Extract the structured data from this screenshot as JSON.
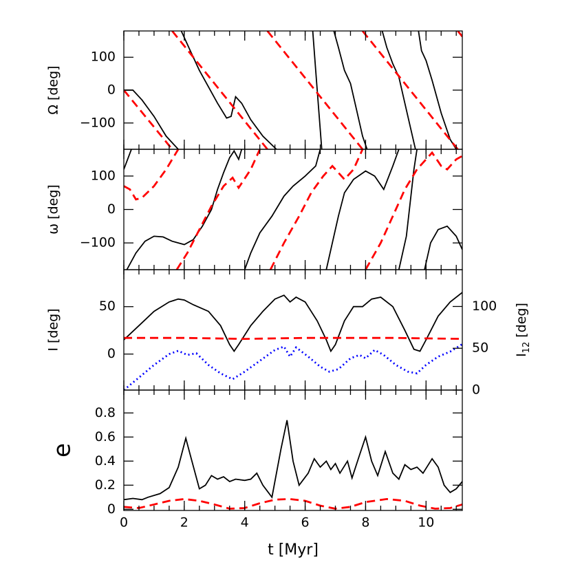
{
  "chart_data": [
    {
      "type": "line",
      "ylabel": "Ω [deg]",
      "xlim": [
        0,
        11.2
      ],
      "xticks": [
        0,
        2,
        4,
        6,
        8,
        10
      ],
      "ylim": [
        -180,
        180
      ],
      "yticks": [
        {
          "value": -100,
          "label": "−100"
        },
        0,
        100
      ],
      "series": [
        {
          "color": "#000000",
          "linestyle": "solid",
          "x": [
            0,
            0.3,
            0.6,
            1.0,
            1.4,
            1.8,
            1.85,
            1.9,
            2.2,
            2.5,
            2.8,
            3.1,
            3.4,
            3.55,
            3.7,
            3.9,
            4.2,
            4.6,
            5.05,
            5.6,
            6.25,
            6.35,
            6.45,
            6.55,
            6.75,
            6.95,
            7.1,
            7.3,
            7.5,
            7.7,
            7.9,
            8.05,
            8.3,
            8.55,
            8.7,
            8.9,
            9.1,
            9.3,
            9.5,
            9.65,
            9.7,
            9.75,
            9.85,
            10.0,
            10.2,
            10.5,
            10.8,
            11.0
          ],
          "values": [
            0,
            0,
            -30,
            -80,
            -140,
            -180,
            null,
            180,
            120,
            60,
            10,
            -40,
            -85,
            -80,
            -20,
            -40,
            -90,
            -140,
            -180,
            null,
            180,
            60,
            -60,
            -180,
            null,
            180,
            130,
            60,
            20,
            -60,
            -140,
            -180,
            null,
            180,
            130,
            80,
            40,
            -40,
            -120,
            -180,
            null,
            180,
            120,
            90,
            30,
            -70,
            -150,
            -180
          ]
        },
        {
          "color": "#ff0000",
          "linestyle": "dashed",
          "x": [
            0,
            1.6,
            1.6,
            1.6,
            4.75,
            4.75,
            4.75,
            7.9,
            7.9,
            7.9,
            11.05,
            11.05,
            11.05,
            11.2
          ],
          "values": [
            0,
            -180,
            null,
            180,
            -180,
            null,
            180,
            -180,
            null,
            180,
            -180,
            null,
            180,
            163
          ]
        }
      ]
    },
    {
      "type": "line",
      "ylabel": "ω [deg]",
      "xlim": [
        0,
        11.2
      ],
      "xticks": [
        0,
        2,
        4,
        6,
        8,
        10
      ],
      "ylim": [
        -180,
        180
      ],
      "yticks": [
        {
          "value": -100,
          "label": "−100"
        },
        0,
        100
      ],
      "series": [
        {
          "color": "#000000",
          "linestyle": "solid",
          "x": [
            0,
            0.25,
            0.17,
            0.1,
            0.4,
            0.7,
            1.0,
            1.3,
            1.6,
            2.0,
            2.3,
            2.6,
            2.9,
            3.1,
            3.3,
            3.5,
            3.65,
            3.8,
            3.9,
            3.95,
            4.0,
            4.2,
            4.5,
            4.9,
            5.3,
            5.6,
            6.0,
            6.35,
            6.5,
            6.6,
            6.7,
            6.9,
            7.1,
            7.3,
            7.6,
            8.0,
            8.3,
            8.6,
            8.9,
            9.1,
            9.1,
            9.1,
            9.35,
            9.6,
            9.7,
            9.8,
            9.95,
            10.15,
            10.4,
            10.7,
            11.0,
            11.2
          ],
          "values": [
            120,
            180,
            null,
            -180,
            -130,
            -95,
            -80,
            -82,
            -95,
            -105,
            -90,
            -50,
            0,
            60,
            110,
            155,
            175,
            150,
            180,
            null,
            -180,
            -130,
            -70,
            -20,
            40,
            70,
            100,
            130,
            180,
            null,
            -180,
            -100,
            -20,
            50,
            90,
            115,
            100,
            60,
            130,
            180,
            null,
            -180,
            -80,
            120,
            180,
            null,
            -180,
            -100,
            -60,
            -50,
            -80,
            -120
          ]
        },
        {
          "color": "#ff0000",
          "linestyle": "dashed",
          "x": [
            0,
            0.2,
            0.4,
            0.6,
            1.0,
            1.4,
            1.7,
            1.8,
            1.8,
            1.75,
            2.1,
            2.5,
            2.9,
            3.3,
            3.6,
            3.7,
            3.8,
            4.2,
            4.5,
            4.6,
            4.85,
            5.3,
            5.8,
            6.2,
            6.6,
            6.9,
            7.1,
            7.3,
            7.6,
            7.9,
            7.95,
            8.0,
            8.5,
            8.9,
            9.3,
            9.7,
            10.0,
            10.2,
            10.5,
            10.7,
            11.0,
            11.2
          ],
          "values": [
            70,
            60,
            30,
            35,
            70,
            120,
            165,
            180,
            null,
            -180,
            -130,
            -60,
            10,
            70,
            95,
            80,
            65,
            120,
            180,
            null,
            -180,
            -100,
            -20,
            50,
            100,
            130,
            110,
            90,
            120,
            180,
            null,
            -180,
            -100,
            -20,
            60,
            120,
            150,
            170,
            130,
            120,
            150,
            160
          ]
        }
      ]
    },
    {
      "type": "line",
      "ylabel": "I [deg]",
      "y2label": [
        "I",
        "12",
        " [deg]"
      ],
      "xlim": [
        0,
        11.2
      ],
      "xticks": [
        0,
        2,
        4,
        6,
        8,
        10
      ],
      "ylim": [
        -38,
        89
      ],
      "yticks": [
        0,
        50
      ],
      "y2lim": [
        0,
        144
      ],
      "y2ticks": [
        0,
        50,
        100
      ],
      "series": [
        {
          "color": "#000000",
          "linestyle": "solid",
          "x": [
            0,
            0.5,
            1.0,
            1.5,
            1.8,
            2.0,
            2.3,
            2.8,
            3.2,
            3.5,
            3.65,
            3.8,
            4.2,
            4.6,
            5.0,
            5.3,
            5.5,
            5.7,
            6.0,
            6.4,
            6.7,
            6.85,
            7.0,
            7.3,
            7.6,
            7.9,
            8.2,
            8.5,
            8.9,
            9.3,
            9.6,
            9.8,
            10.0,
            10.4,
            10.8,
            11.2
          ],
          "values": [
            15,
            30,
            45,
            55,
            58,
            57,
            52,
            45,
            30,
            10,
            3,
            10,
            30,
            45,
            58,
            62,
            55,
            60,
            55,
            35,
            15,
            3,
            10,
            35,
            50,
            50,
            58,
            60,
            50,
            25,
            5,
            3,
            15,
            40,
            55,
            65
          ]
        },
        {
          "color": "#ff0000",
          "linestyle": "dashed",
          "x": [
            0,
            1,
            2,
            3,
            4,
            5,
            6,
            7,
            8,
            9,
            10,
            11.2
          ],
          "values": [
            17,
            17,
            17,
            16.5,
            16,
            16.5,
            17,
            17,
            17,
            17,
            16.5,
            16
          ]
        },
        {
          "color": "#0000ff",
          "linestyle": "dotted",
          "axis": "y2",
          "x": [
            0,
            0.5,
            1.0,
            1.5,
            1.8,
            2.1,
            2.4,
            2.8,
            3.2,
            3.6,
            4.0,
            4.5,
            5.0,
            5.3,
            5.5,
            5.7,
            6.1,
            6.5,
            6.8,
            7.1,
            7.5,
            7.8,
            8.0,
            8.3,
            8.6,
            9.0,
            9.4,
            9.7,
            10.0,
            10.4,
            10.8,
            11.2
          ],
          "values": [
            0,
            15,
            30,
            43,
            47,
            42,
            44,
            30,
            20,
            13,
            22,
            35,
            48,
            52,
            40,
            51,
            40,
            28,
            22,
            25,
            38,
            42,
            38,
            48,
            42,
            30,
            22,
            20,
            30,
            40,
            46,
            55
          ]
        }
      ]
    },
    {
      "type": "line",
      "ylabel": "e",
      "xlabel": "t [Myr]",
      "xlim": [
        0,
        11.2
      ],
      "xticks": [
        0,
        2,
        4,
        6,
        8,
        10
      ],
      "ylim": [
        -0.01,
        0.99
      ],
      "yticks": [
        0,
        0.2,
        0.4,
        0.6,
        0.8
      ],
      "series": [
        {
          "color": "#000000",
          "linestyle": "solid",
          "x": [
            0,
            0.3,
            0.6,
            0.8,
            1.2,
            1.5,
            1.8,
            2.05,
            2.2,
            2.5,
            2.7,
            2.9,
            3.1,
            3.3,
            3.5,
            3.7,
            4.0,
            4.2,
            4.4,
            4.6,
            4.9,
            5.2,
            5.4,
            5.6,
            5.8,
            6.1,
            6.3,
            6.5,
            6.7,
            6.85,
            7.0,
            7.15,
            7.4,
            7.55,
            7.8,
            8.0,
            8.2,
            8.4,
            8.65,
            8.9,
            9.1,
            9.3,
            9.5,
            9.7,
            9.9,
            10.2,
            10.4,
            10.6,
            10.8,
            11.0,
            11.2
          ],
          "values": [
            0.08,
            0.09,
            0.08,
            0.1,
            0.13,
            0.18,
            0.35,
            0.59,
            0.45,
            0.17,
            0.2,
            0.28,
            0.25,
            0.27,
            0.23,
            0.25,
            0.24,
            0.25,
            0.3,
            0.2,
            0.1,
            0.5,
            0.74,
            0.4,
            0.2,
            0.3,
            0.42,
            0.35,
            0.4,
            0.33,
            0.38,
            0.3,
            0.4,
            0.26,
            0.45,
            0.6,
            0.4,
            0.28,
            0.48,
            0.3,
            0.25,
            0.37,
            0.33,
            0.35,
            0.3,
            0.42,
            0.35,
            0.2,
            0.14,
            0.17,
            0.23
          ]
        },
        {
          "color": "#ff0000",
          "linestyle": "dashed",
          "x": [
            0,
            0.5,
            1.0,
            1.5,
            2.0,
            2.5,
            3.0,
            3.5,
            4.0,
            4.5,
            5.0,
            5.5,
            6.0,
            6.5,
            7.0,
            7.5,
            8.0,
            8.7,
            9.3,
            9.8,
            10.3,
            10.8,
            11.2
          ],
          "values": [
            0.02,
            0.01,
            0.04,
            0.07,
            0.085,
            0.07,
            0.04,
            0.005,
            0.01,
            0.05,
            0.08,
            0.085,
            0.07,
            0.03,
            0.005,
            0.02,
            0.06,
            0.085,
            0.07,
            0.03,
            0.005,
            0.01,
            0.04
          ]
        }
      ]
    }
  ]
}
